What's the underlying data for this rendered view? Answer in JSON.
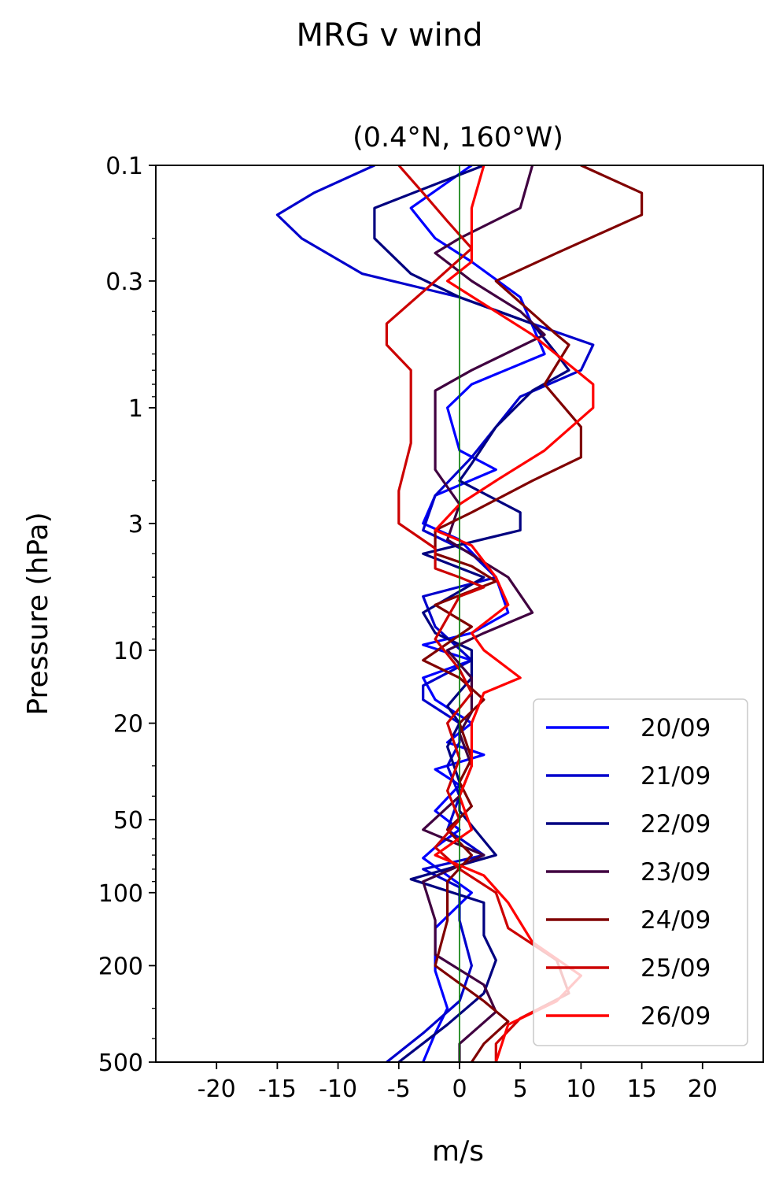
{
  "figure": {
    "suptitle": "MRG v wind"
  },
  "chart_data": {
    "type": "line",
    "title": "(0.4°N, 160°W)",
    "xlabel": "m/s",
    "ylabel": "Pressure (hPa)",
    "xlim": [
      -25,
      25
    ],
    "ylim": [
      500,
      0.1
    ],
    "yscale": "log",
    "yaxis_inverted": true,
    "xticks": [
      -20,
      -15,
      -10,
      -5,
      0,
      5,
      10,
      15,
      20
    ],
    "xtick_labels": [
      "-20",
      "-15",
      "-10",
      "-5",
      "0",
      "5",
      "10",
      "15",
      "20"
    ],
    "yticks": [
      0.1,
      0.3,
      1,
      3,
      10,
      20,
      50,
      100,
      200,
      500
    ],
    "ytick_labels": [
      "0.1",
      "0.3",
      "1",
      "3",
      "10",
      "20",
      "50",
      "100",
      "200",
      "500"
    ],
    "reference_line": {
      "x": 0,
      "color": "#007a00"
    },
    "grid": false,
    "legend_position": "lower right",
    "series": [
      {
        "name": "20/09",
        "color": "#0000ff",
        "points": [
          [
            1,
            0.1
          ],
          [
            -4,
            0.15
          ],
          [
            -2,
            0.2
          ],
          [
            1,
            0.25
          ],
          [
            5,
            0.35
          ],
          [
            7,
            0.6
          ],
          [
            1,
            0.8
          ],
          [
            -1,
            1.0
          ],
          [
            0,
            1.5
          ],
          [
            3,
            1.8
          ],
          [
            -2,
            2.3
          ],
          [
            -3,
            3.0
          ],
          [
            0,
            3.5
          ],
          [
            3,
            5.0
          ],
          [
            4,
            7.0
          ],
          [
            1,
            8.5
          ],
          [
            -3,
            9.5
          ],
          [
            1,
            11.0
          ],
          [
            -3,
            13.0
          ],
          [
            -2,
            16.0
          ],
          [
            1,
            20.0
          ],
          [
            -1,
            24.0
          ],
          [
            2,
            27.0
          ],
          [
            -2,
            31.0
          ],
          [
            0,
            36.0
          ],
          [
            -2,
            46.0
          ],
          [
            0,
            55.0
          ],
          [
            -2,
            65.0
          ],
          [
            -3,
            72.0
          ],
          [
            -1,
            85.0
          ],
          [
            1,
            100.0
          ],
          [
            -2,
            140.0
          ],
          [
            -2,
            210.0
          ],
          [
            -1,
            300.0
          ],
          [
            -2,
            380.0
          ],
          [
            -3,
            500.0
          ]
        ]
      },
      {
        "name": "21/09",
        "color": "#0000cc",
        "points": [
          [
            -7,
            0.1
          ],
          [
            -12,
            0.13
          ],
          [
            -15,
            0.16
          ],
          [
            -13,
            0.2
          ],
          [
            -8,
            0.28
          ],
          [
            0,
            0.35
          ],
          [
            6,
            0.45
          ],
          [
            11,
            0.55
          ],
          [
            10,
            0.7
          ],
          [
            5,
            0.9
          ],
          [
            3,
            1.2
          ],
          [
            1,
            1.6
          ],
          [
            -2,
            2.3
          ],
          [
            -3,
            3.2
          ],
          [
            1,
            4.0
          ],
          [
            3,
            5.0
          ],
          [
            -3,
            6.0
          ],
          [
            -2,
            8.0
          ],
          [
            1,
            11.0
          ],
          [
            -3,
            14.0
          ],
          [
            -3,
            16.0
          ],
          [
            0,
            20.0
          ],
          [
            0,
            24.0
          ],
          [
            -1,
            30.0
          ],
          [
            0,
            40.0
          ],
          [
            -1,
            55.0
          ],
          [
            2,
            70.0
          ],
          [
            -3,
            80.0
          ],
          [
            0,
            95.0
          ],
          [
            0,
            130.0
          ],
          [
            1,
            200.0
          ],
          [
            0,
            280.0
          ],
          [
            -3,
            380.0
          ],
          [
            -6,
            500.0
          ]
        ]
      },
      {
        "name": "22/09",
        "color": "#000080",
        "points": [
          [
            2,
            0.1
          ],
          [
            -7,
            0.15
          ],
          [
            -7,
            0.2
          ],
          [
            -4,
            0.28
          ],
          [
            0,
            0.35
          ],
          [
            6,
            0.45
          ],
          [
            8,
            0.6
          ],
          [
            9,
            0.7
          ],
          [
            6,
            0.85
          ],
          [
            3,
            1.2
          ],
          [
            1,
            1.7
          ],
          [
            0,
            2.0
          ],
          [
            5,
            2.7
          ],
          [
            5,
            3.2
          ],
          [
            -3,
            4.0
          ],
          [
            2,
            5.0
          ],
          [
            -3,
            7.0
          ],
          [
            -2,
            8.5
          ],
          [
            1,
            10.0
          ],
          [
            1,
            13.0
          ],
          [
            -1,
            17.0
          ],
          [
            0,
            20.0
          ],
          [
            -1,
            25.0
          ],
          [
            0,
            35.0
          ],
          [
            0,
            46.0
          ],
          [
            3,
            70.0
          ],
          [
            -4,
            88.0
          ],
          [
            2,
            110.0
          ],
          [
            2,
            150.0
          ],
          [
            3,
            190.0
          ],
          [
            2,
            260.0
          ],
          [
            -1,
            350.0
          ],
          [
            -5,
            500.0
          ]
        ]
      },
      {
        "name": "23/09",
        "color": "#400040",
        "points": [
          [
            6,
            0.1
          ],
          [
            5,
            0.15
          ],
          [
            0,
            0.2
          ],
          [
            -2,
            0.23
          ],
          [
            1,
            0.3
          ],
          [
            5,
            0.4
          ],
          [
            7,
            0.5
          ],
          [
            1,
            0.7
          ],
          [
            -2,
            0.85
          ],
          [
            -2,
            1.2
          ],
          [
            -2,
            1.8
          ],
          [
            0,
            2.5
          ],
          [
            -1,
            3.5
          ],
          [
            4,
            5.0
          ],
          [
            6,
            7.0
          ],
          [
            2,
            8.5
          ],
          [
            -1,
            10.0
          ],
          [
            1,
            13.0
          ],
          [
            1,
            18.0
          ],
          [
            0,
            22.0
          ],
          [
            1,
            30.0
          ],
          [
            0,
            40.0
          ],
          [
            -3,
            55.0
          ],
          [
            2,
            70.0
          ],
          [
            -3,
            90.0
          ],
          [
            -2,
            130.0
          ],
          [
            -2,
            180.0
          ],
          [
            2,
            240.0
          ],
          [
            3,
            310.0
          ],
          [
            0,
            420.0
          ],
          [
            0,
            500.0
          ]
        ]
      },
      {
        "name": "24/09",
        "color": "#800000",
        "points": [
          [
            10,
            0.1
          ],
          [
            15,
            0.13
          ],
          [
            15,
            0.16
          ],
          [
            8,
            0.23
          ],
          [
            3,
            0.3
          ],
          [
            8,
            0.5
          ],
          [
            9,
            0.55
          ],
          [
            7,
            0.8
          ],
          [
            10,
            1.2
          ],
          [
            10,
            1.6
          ],
          [
            6,
            2.0
          ],
          [
            1,
            2.7
          ],
          [
            -2,
            3.2
          ],
          [
            -2,
            4.0
          ],
          [
            1,
            4.5
          ],
          [
            3,
            5.2
          ],
          [
            -2,
            6.5
          ],
          [
            1,
            8.0
          ],
          [
            -3,
            11.0
          ],
          [
            0,
            13.0
          ],
          [
            2,
            16.0
          ],
          [
            0,
            20.0
          ],
          [
            1,
            28.0
          ],
          [
            0,
            35.0
          ],
          [
            1,
            44.0
          ],
          [
            -1,
            55.0
          ],
          [
            1,
            70.0
          ],
          [
            -1,
            90.0
          ],
          [
            -1,
            130.0
          ],
          [
            -2,
            200.0
          ],
          [
            2,
            280.0
          ],
          [
            4,
            340.0
          ],
          [
            2,
            420.0
          ],
          [
            1,
            500.0
          ]
        ]
      },
      {
        "name": "25/09",
        "color": "#cc0000",
        "points": [
          [
            -5,
            0.1
          ],
          [
            -3,
            0.13
          ],
          [
            -1,
            0.17
          ],
          [
            1,
            0.22
          ],
          [
            -2,
            0.3
          ],
          [
            -6,
            0.45
          ],
          [
            -6,
            0.55
          ],
          [
            -4,
            0.7
          ],
          [
            -4,
            1.0
          ],
          [
            -4,
            1.4
          ],
          [
            -5,
            2.2
          ],
          [
            -5,
            3.0
          ],
          [
            -2,
            3.8
          ],
          [
            -2,
            4.6
          ],
          [
            0,
            5.0
          ],
          [
            2,
            5.5
          ],
          [
            0,
            6.0
          ],
          [
            -2,
            9.0
          ],
          [
            0,
            12.0
          ],
          [
            1,
            15.0
          ],
          [
            -1,
            20.0
          ],
          [
            0,
            28.0
          ],
          [
            -1,
            38.0
          ],
          [
            0,
            50.0
          ],
          [
            -2,
            65.0
          ],
          [
            0,
            80.0
          ],
          [
            3,
            100.0
          ],
          [
            4,
            140.0
          ],
          [
            8,
            190.0
          ],
          [
            9,
            260.0
          ],
          [
            5,
            330.0
          ],
          [
            3,
            420.0
          ],
          [
            3,
            500.0
          ]
        ]
      },
      {
        "name": "26/09",
        "color": "#ff0000",
        "points": [
          [
            2,
            0.1
          ],
          [
            1,
            0.15
          ],
          [
            1,
            0.2
          ],
          [
            1,
            0.25
          ],
          [
            -1,
            0.3
          ],
          [
            6,
            0.5
          ],
          [
            11,
            0.8
          ],
          [
            11,
            1.0
          ],
          [
            7,
            1.5
          ],
          [
            3,
            2.0
          ],
          [
            0,
            2.5
          ],
          [
            -2,
            3.2
          ],
          [
            1,
            3.7
          ],
          [
            3,
            5.0
          ],
          [
            4,
            6.5
          ],
          [
            1,
            8.5
          ],
          [
            2,
            10.0
          ],
          [
            5,
            13.0
          ],
          [
            2,
            15.0
          ],
          [
            1,
            20.0
          ],
          [
            1,
            30.0
          ],
          [
            0,
            40.0
          ],
          [
            1,
            55.0
          ],
          [
            -2,
            70.0
          ],
          [
            2,
            85.0
          ],
          [
            4,
            110.0
          ],
          [
            6,
            160.0
          ],
          [
            10,
            220.0
          ],
          [
            8,
            280.0
          ],
          [
            4,
            350.0
          ],
          [
            3,
            500.0
          ]
        ]
      }
    ]
  }
}
